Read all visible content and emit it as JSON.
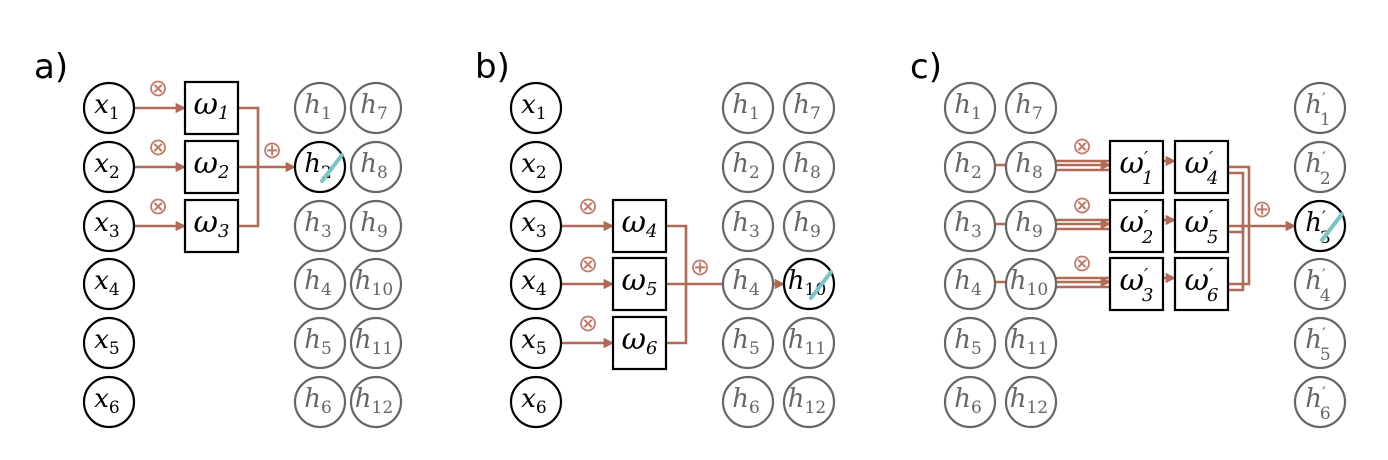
{
  "panels": [
    {
      "label": "a)",
      "inputs": [
        {
          "sym": "x",
          "sub": "1"
        },
        {
          "sym": "x",
          "sub": "2"
        },
        {
          "sym": "x",
          "sub": "3"
        },
        {
          "sym": "x",
          "sub": "4"
        },
        {
          "sym": "x",
          "sub": "5"
        },
        {
          "sym": "x",
          "sub": "6"
        }
      ],
      "weights": [
        {
          "sym": "ω",
          "sub": "1",
          "prime": ""
        },
        {
          "sym": "ω",
          "sub": "2",
          "prime": ""
        },
        {
          "sym": "ω",
          "sub": "3",
          "prime": ""
        }
      ],
      "hidden": [
        {
          "sym": "h",
          "sub": "1"
        },
        {
          "sym": "h",
          "sub": "2"
        },
        {
          "sym": "h",
          "sub": "3"
        },
        {
          "sym": "h",
          "sub": "4"
        },
        {
          "sym": "h",
          "sub": "5"
        },
        {
          "sym": "h",
          "sub": "6"
        },
        {
          "sym": "h",
          "sub": "7"
        },
        {
          "sym": "h",
          "sub": "8"
        },
        {
          "sym": "h",
          "sub": "9"
        },
        {
          "sym": "h",
          "sub": "10"
        },
        {
          "sym": "h",
          "sub": "11"
        },
        {
          "sym": "h",
          "sub": "12"
        }
      ],
      "multiply_symbol": "⊗",
      "add_symbol": "⊕",
      "target": "h2"
    },
    {
      "label": "b)",
      "inputs": [
        {
          "sym": "x",
          "sub": "1"
        },
        {
          "sym": "x",
          "sub": "2"
        },
        {
          "sym": "x",
          "sub": "3"
        },
        {
          "sym": "x",
          "sub": "4"
        },
        {
          "sym": "x",
          "sub": "5"
        },
        {
          "sym": "x",
          "sub": "6"
        }
      ],
      "weights": [
        {
          "sym": "ω",
          "sub": "4",
          "prime": ""
        },
        {
          "sym": "ω",
          "sub": "5",
          "prime": ""
        },
        {
          "sym": "ω",
          "sub": "6",
          "prime": ""
        }
      ],
      "hidden": [
        {
          "sym": "h",
          "sub": "1"
        },
        {
          "sym": "h",
          "sub": "2"
        },
        {
          "sym": "h",
          "sub": "3"
        },
        {
          "sym": "h",
          "sub": "4"
        },
        {
          "sym": "h",
          "sub": "5"
        },
        {
          "sym": "h",
          "sub": "6"
        },
        {
          "sym": "h",
          "sub": "7"
        },
        {
          "sym": "h",
          "sub": "8"
        },
        {
          "sym": "h",
          "sub": "9"
        },
        {
          "sym": "h",
          "sub": "10"
        },
        {
          "sym": "h",
          "sub": "11"
        },
        {
          "sym": "h",
          "sub": "12"
        }
      ],
      "multiply_symbol": "⊗",
      "add_symbol": "⊕",
      "target": "h10"
    },
    {
      "label": "c)",
      "hidden": [
        {
          "sym": "h",
          "sub": "1"
        },
        {
          "sym": "h",
          "sub": "2"
        },
        {
          "sym": "h",
          "sub": "3"
        },
        {
          "sym": "h",
          "sub": "4"
        },
        {
          "sym": "h",
          "sub": "5"
        },
        {
          "sym": "h",
          "sub": "6"
        },
        {
          "sym": "h",
          "sub": "7"
        },
        {
          "sym": "h",
          "sub": "8"
        },
        {
          "sym": "h",
          "sub": "9"
        },
        {
          "sym": "h",
          "sub": "10"
        },
        {
          "sym": "h",
          "sub": "11"
        },
        {
          "sym": "h",
          "sub": "12"
        }
      ],
      "weights": [
        {
          "sym": "ω",
          "sub": "1",
          "prime": "′"
        },
        {
          "sym": "ω",
          "sub": "4",
          "prime": "′"
        },
        {
          "sym": "ω",
          "sub": "2",
          "prime": "′"
        },
        {
          "sym": "ω",
          "sub": "5",
          "prime": "′"
        },
        {
          "sym": "ω",
          "sub": "3",
          "prime": "′"
        },
        {
          "sym": "ω",
          "sub": "6",
          "prime": "′"
        }
      ],
      "outputs": [
        {
          "sym": "h",
          "sub": "1",
          "prime": "′"
        },
        {
          "sym": "h",
          "sub": "2",
          "prime": "′"
        },
        {
          "sym": "h",
          "sub": "3",
          "prime": "′"
        },
        {
          "sym": "h",
          "sub": "4",
          "prime": "′"
        },
        {
          "sym": "h",
          "sub": "5",
          "prime": "′"
        },
        {
          "sym": "h",
          "sub": "6",
          "prime": "′"
        }
      ],
      "multiply_symbol": "⊗",
      "add_symbol": "⊕",
      "target": "h'3"
    }
  ],
  "colors": {
    "wire": "#b06a55",
    "operator": "#c07a68",
    "highlight": "#7cc4c4",
    "inactive": "#666666",
    "active": "#000000"
  }
}
